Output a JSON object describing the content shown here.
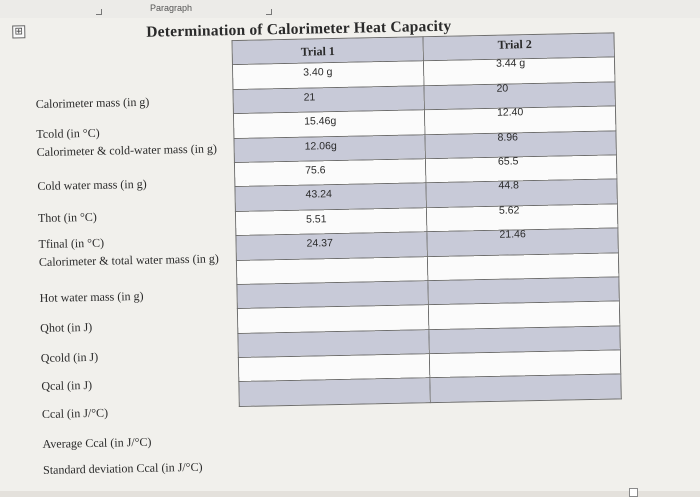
{
  "ribbon": {
    "label": "Paragraph"
  },
  "doc": {
    "move_handle": "⊞",
    "title": "Determination of Calorimeter Heat Capacity",
    "columns": [
      "Trial 1",
      "Trial 2"
    ],
    "row_labels": [
      "Calorimeter mass (in g)",
      "Tcold (in °C)",
      "Calorimeter & cold-water mass (in g)",
      "Cold water mass (in g)",
      "Thot (in °C)",
      "Tfinal (in °C)",
      "Calorimeter & total water mass (in g)",
      "Hot water mass (in g)",
      "Qhot (in J)",
      "Qcold (in J)",
      "Qcal (in J)",
      "Ccal (in J/°C)",
      "Average Ccal (in J/°C)",
      "Standard deviation Ccal (in J/°C)"
    ],
    "trial1": [
      "3.40 g",
      "21",
      "15.46g",
      "12.06g",
      "75.6",
      "43.24",
      "5.51",
      "24.37",
      "",
      "",
      "",
      "",
      "",
      ""
    ],
    "trial2": [
      "3.44 g",
      "20",
      "12.40",
      "8.96",
      "65.5",
      "44.8",
      "5.62",
      "21.46",
      "",
      "",
      "",
      "",
      "",
      ""
    ]
  }
}
